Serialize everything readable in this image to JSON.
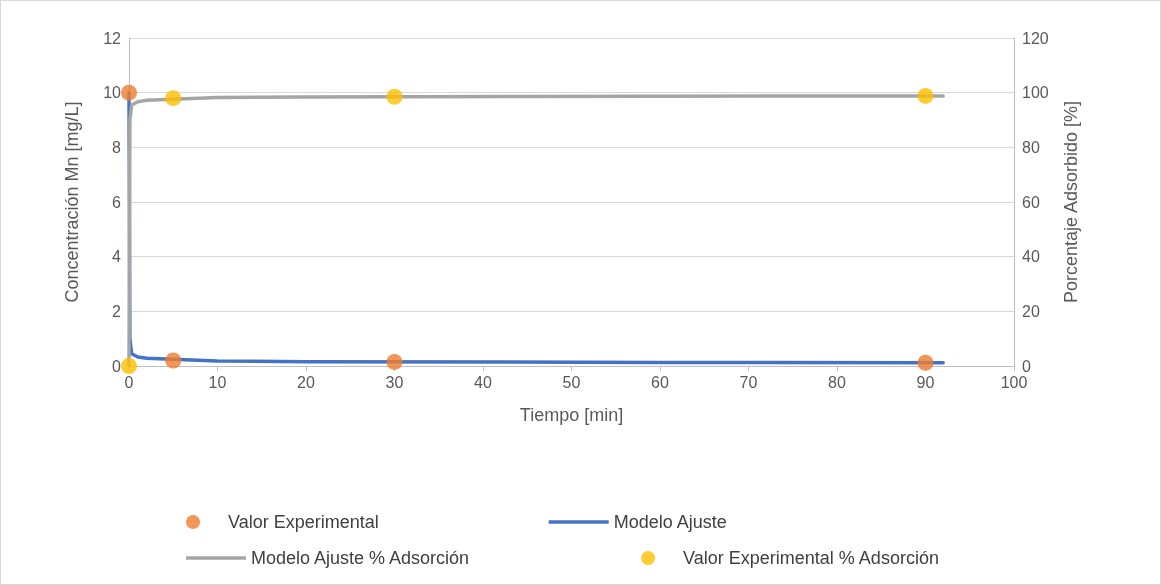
{
  "chart_data": {
    "type": "scatter",
    "xlabel": "Tiempo [min]",
    "ylabel": "Concentración Mn [mg/L]",
    "y2label": "Porcentaje Adsorbido [%]",
    "xlim": [
      0,
      100
    ],
    "xticks": [
      0,
      10,
      20,
      30,
      40,
      50,
      60,
      70,
      80,
      90,
      100
    ],
    "ylim": [
      0,
      12
    ],
    "yticks": [
      0,
      2,
      4,
      6,
      8,
      10,
      12
    ],
    "y2lim": [
      0,
      120
    ],
    "y2ticks": [
      0,
      20,
      40,
      60,
      80,
      100,
      120
    ],
    "grid": "y",
    "legend": "bottom",
    "marker": "circle",
    "series": [
      {
        "name": "Valor Experimental",
        "color": "#ed7d31",
        "x": [
          0,
          5,
          30,
          90
        ],
        "values": [
          10,
          0.2,
          0.15,
          0.12
        ]
      },
      {
        "name": "Modelo Ajuste",
        "type": "line",
        "color": "#4472c4",
        "marker": "none",
        "x": [
          0,
          0.1,
          0.3,
          1,
          2,
          10,
          20,
          60,
          92
        ],
        "values": [
          10,
          1,
          0.45,
          0.33,
          0.28,
          0.18,
          0.16,
          0.13,
          0.12
        ]
      },
      {
        "name": "Modelo Ajuste % Adsorción",
        "type": "line",
        "axis": "y2",
        "color": "#a5a5a5",
        "marker": "none",
        "x": [
          0,
          0.1,
          0.3,
          1,
          2,
          10,
          20,
          60,
          92
        ],
        "values": [
          0,
          90,
          95.5,
          96.7,
          97.2,
          98.2,
          98.4,
          98.7,
          98.8
        ]
      },
      {
        "name": "Valor Experimental % Adsorción",
        "axis": "y2",
        "color": "#ffc000",
        "x": [
          0,
          5,
          30,
          90
        ],
        "values": [
          0,
          98,
          98.5,
          98.8
        ]
      }
    ]
  }
}
